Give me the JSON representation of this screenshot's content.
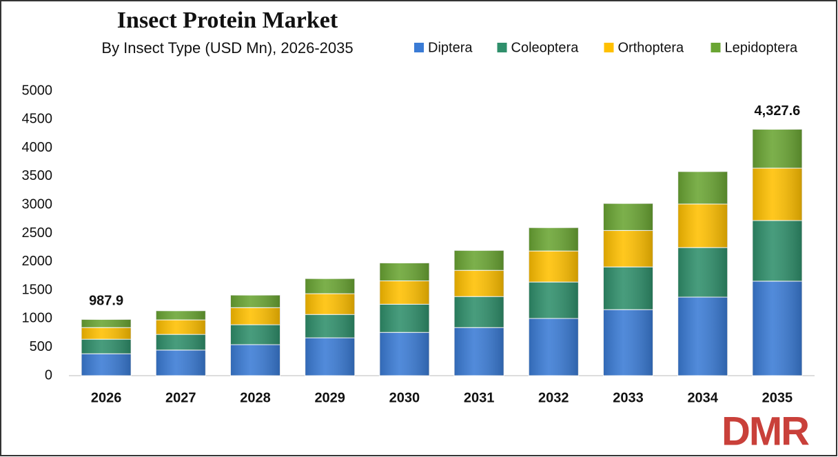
{
  "chart_data": {
    "type": "stacked_bar",
    "title": "Insect Protein Market",
    "subtitle": "By Insect Type (USD Mn), 2026-2035",
    "categories": [
      "2026",
      "2027",
      "2028",
      "2029",
      "2030",
      "2031",
      "2032",
      "2033",
      "2034",
      "2035"
    ],
    "series": [
      {
        "name": "Diptera",
        "color": "#3a7bd5",
        "values": [
          385,
          450,
          545,
          665,
          760,
          845,
          1005,
          1160,
          1380,
          1660
        ]
      },
      {
        "name": "Coleoptera",
        "color": "#2f8f6b",
        "values": [
          255,
          275,
          350,
          410,
          495,
          545,
          640,
          750,
          870,
          1065
        ]
      },
      {
        "name": "Orthoptera",
        "color": "#ffc000",
        "values": [
          205,
          255,
          300,
          365,
          410,
          460,
          545,
          640,
          765,
          920
        ]
      },
      {
        "name": "Lepidoptera",
        "color": "#6aa533",
        "values": [
          142.9,
          160,
          220,
          265,
          315,
          350,
          410,
          475,
          570,
          682.6
        ]
      }
    ],
    "totals": [
      987.9,
      null,
      null,
      null,
      null,
      null,
      null,
      null,
      null,
      4327.6
    ],
    "total_labels": [
      "987.9",
      null,
      null,
      null,
      null,
      null,
      null,
      null,
      null,
      "4,327.6"
    ],
    "ylim": [
      0,
      5000
    ],
    "yticks": [
      0,
      500,
      1000,
      1500,
      2000,
      2500,
      3000,
      3500,
      4000,
      4500,
      5000
    ],
    "grid": false,
    "legend": "top-right"
  },
  "logo": "DMR"
}
